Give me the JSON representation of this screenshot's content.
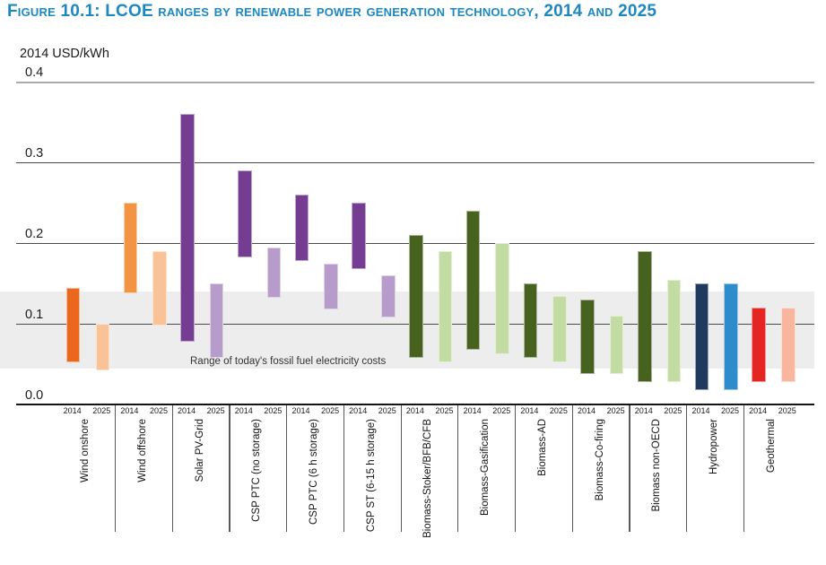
{
  "header": {
    "title": "Figure 10.1: LCOE ranges by renewable power generation technology, 2014 and 2025"
  },
  "chart_data": {
    "type": "bar",
    "subtype": "floating-range-bars",
    "title": "LCOE ranges by renewable power generation technology, 2014 and 2025",
    "ylabel": "2014 USD/kWh",
    "xlabel": "",
    "ylim": [
      0.0,
      0.4
    ],
    "yticks": [
      0.0,
      0.1,
      0.2,
      0.3,
      0.4
    ],
    "grid": "horizontal",
    "legend_position": "none",
    "series_labels": [
      "2014",
      "2025"
    ],
    "fossil_fuel_band": {
      "low": 0.045,
      "high": 0.14,
      "label": "Range of today's fossil fuel electricity costs",
      "color": "#EDEDEE"
    },
    "categories": [
      {
        "name": "Wind onshore",
        "y2014": [
          0.055,
          0.145
        ],
        "y2025": [
          0.045,
          0.1
        ],
        "color_2014": "#EA671E",
        "color_2025": "#F9C397"
      },
      {
        "name": "Wind offshore",
        "y2014": [
          0.14,
          0.25
        ],
        "y2025": [
          0.1,
          0.19
        ],
        "color_2014": "#F29441",
        "color_2025": "#F9C397"
      },
      {
        "name": "Solar PV-Grid",
        "y2014": [
          0.08,
          0.36
        ],
        "y2025": [
          0.06,
          0.15
        ],
        "color_2014": "#743D92",
        "color_2025": "#B79CCB"
      },
      {
        "name": "CSP PTC (no storage)",
        "y2014": [
          0.185,
          0.29
        ],
        "y2025": [
          0.135,
          0.195
        ],
        "color_2014": "#743D92",
        "color_2025": "#B79CCB"
      },
      {
        "name": "CSP PTC (6 h storage)",
        "y2014": [
          0.18,
          0.26
        ],
        "y2025": [
          0.12,
          0.175
        ],
        "color_2014": "#743D92",
        "color_2025": "#B79CCB"
      },
      {
        "name": "CSP ST (6-15 h storage)",
        "y2014": [
          0.17,
          0.25
        ],
        "y2025": [
          0.11,
          0.16
        ],
        "color_2014": "#743D92",
        "color_2025": "#B79CCB"
      },
      {
        "name": "Biomass-Stoker/BFB/CFB",
        "y2014": [
          0.06,
          0.21
        ],
        "y2025": [
          0.055,
          0.19
        ],
        "color_2014": "#47621F",
        "color_2025": "#C3DCA3"
      },
      {
        "name": "Biomass-Gasification",
        "y2014": [
          0.07,
          0.24
        ],
        "y2025": [
          0.065,
          0.2
        ],
        "color_2014": "#47621F",
        "color_2025": "#C3DCA3"
      },
      {
        "name": "Biomass-AD",
        "y2014": [
          0.06,
          0.15
        ],
        "y2025": [
          0.055,
          0.135
        ],
        "color_2014": "#47621F",
        "color_2025": "#C3DCA3"
      },
      {
        "name": "Biomass-Co-firing",
        "y2014": [
          0.04,
          0.13
        ],
        "y2025": [
          0.04,
          0.11
        ],
        "color_2014": "#47621F",
        "color_2025": "#C3DCA3"
      },
      {
        "name": "Biomass non-OECD",
        "y2014": [
          0.03,
          0.19
        ],
        "y2025": [
          0.03,
          0.155
        ],
        "color_2014": "#47621F",
        "color_2025": "#C3DCA3"
      },
      {
        "name": "Hydropower",
        "y2014": [
          0.02,
          0.15
        ],
        "y2025": [
          0.02,
          0.15
        ],
        "color_2014": "#1F3A5E",
        "color_2025": "#2F8CCC"
      },
      {
        "name": "Geothermal",
        "y2014": [
          0.03,
          0.12
        ],
        "y2025": [
          0.03,
          0.12
        ],
        "color_2014": "#E42522",
        "color_2025": "#F8B69E"
      }
    ]
  }
}
